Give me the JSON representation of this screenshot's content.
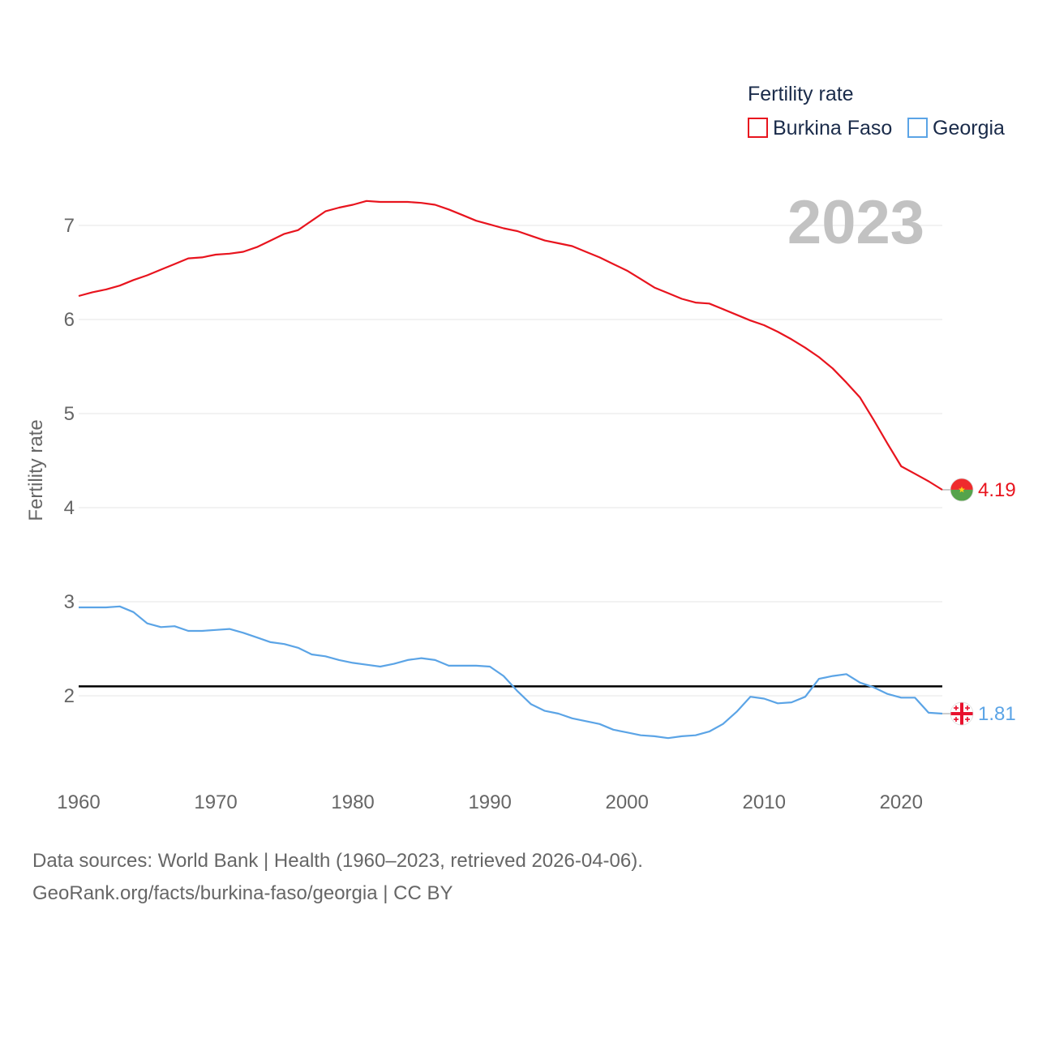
{
  "chart_data": {
    "type": "line",
    "title": "",
    "ylabel": "Fertility rate",
    "xlabel": "",
    "xlim": [
      1960,
      2023
    ],
    "ylim": [
      1.2,
      7.6
    ],
    "yticks": [
      2,
      3,
      4,
      5,
      6,
      7
    ],
    "xticks": [
      1960,
      1970,
      1980,
      1990,
      2000,
      2010,
      2020
    ],
    "reference_line": 2.1,
    "year_label": "2023",
    "legend": {
      "title": "Fertility rate",
      "placement": "top-right"
    },
    "series": [
      {
        "name": "Burkina Faso",
        "color": "#e8141e",
        "end_label": "4.19",
        "flag": "burkina-faso-flag-icon",
        "x": [
          1960,
          1961,
          1962,
          1963,
          1964,
          1965,
          1966,
          1967,
          1968,
          1969,
          1970,
          1971,
          1972,
          1973,
          1974,
          1975,
          1976,
          1977,
          1978,
          1979,
          1980,
          1981,
          1982,
          1983,
          1984,
          1985,
          1986,
          1987,
          1988,
          1989,
          1990,
          1991,
          1992,
          1993,
          1994,
          1995,
          1996,
          1997,
          1998,
          1999,
          2000,
          2001,
          2002,
          2003,
          2004,
          2005,
          2006,
          2007,
          2008,
          2009,
          2010,
          2011,
          2012,
          2013,
          2014,
          2015,
          2016,
          2017,
          2018,
          2019,
          2020,
          2021,
          2022,
          2023
        ],
        "values": [
          6.25,
          6.29,
          6.32,
          6.36,
          6.42,
          6.47,
          6.53,
          6.59,
          6.65,
          6.66,
          6.69,
          6.7,
          6.72,
          6.77,
          6.84,
          6.91,
          6.95,
          7.05,
          7.15,
          7.19,
          7.22,
          7.26,
          7.25,
          7.25,
          7.25,
          7.24,
          7.22,
          7.17,
          7.11,
          7.05,
          7.01,
          6.97,
          6.94,
          6.89,
          6.84,
          6.81,
          6.78,
          6.72,
          6.66,
          6.59,
          6.52,
          6.43,
          6.34,
          6.28,
          6.22,
          6.18,
          6.17,
          6.11,
          6.05,
          5.99,
          5.94,
          5.87,
          5.79,
          5.7,
          5.6,
          5.48,
          5.33,
          5.17,
          4.93,
          4.68,
          4.44,
          4.36,
          4.28,
          4.19
        ]
      },
      {
        "name": "Georgia",
        "color": "#5ba4e6",
        "end_label": "1.81",
        "flag": "georgia-flag-icon",
        "x": [
          1960,
          1961,
          1962,
          1963,
          1964,
          1965,
          1966,
          1967,
          1968,
          1969,
          1970,
          1971,
          1972,
          1973,
          1974,
          1975,
          1976,
          1977,
          1978,
          1979,
          1980,
          1981,
          1982,
          1983,
          1984,
          1985,
          1986,
          1987,
          1988,
          1989,
          1990,
          1991,
          1992,
          1993,
          1994,
          1995,
          1996,
          1997,
          1998,
          1999,
          2000,
          2001,
          2002,
          2003,
          2004,
          2005,
          2006,
          2007,
          2008,
          2009,
          2010,
          2011,
          2012,
          2013,
          2014,
          2015,
          2016,
          2017,
          2018,
          2019,
          2020,
          2021,
          2022,
          2023
        ],
        "values": [
          2.94,
          2.94,
          2.94,
          2.95,
          2.89,
          2.77,
          2.73,
          2.74,
          2.69,
          2.69,
          2.7,
          2.71,
          2.67,
          2.62,
          2.57,
          2.55,
          2.51,
          2.44,
          2.42,
          2.38,
          2.35,
          2.33,
          2.31,
          2.34,
          2.38,
          2.4,
          2.38,
          2.32,
          2.32,
          2.32,
          2.31,
          2.21,
          2.05,
          1.91,
          1.84,
          1.81,
          1.76,
          1.73,
          1.7,
          1.64,
          1.61,
          1.58,
          1.57,
          1.55,
          1.57,
          1.58,
          1.62,
          1.7,
          1.83,
          1.99,
          1.97,
          1.92,
          1.93,
          1.99,
          2.18,
          2.21,
          2.23,
          2.14,
          2.09,
          2.02,
          1.98,
          1.98,
          1.82,
          1.81
        ]
      }
    ]
  },
  "footer": {
    "line1": "Data sources: World Bank | Health (1960–2023, retrieved 2026-04-06).",
    "line2": "GeoRank.org/facts/burkina-faso/georgia | CC BY"
  }
}
